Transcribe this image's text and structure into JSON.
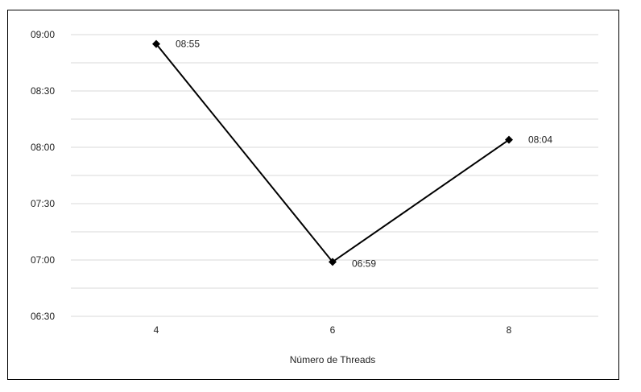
{
  "chart_data": {
    "type": "line",
    "title": "",
    "xlabel": "Número de Threads",
    "ylabel": "",
    "categories": [
      "4",
      "6",
      "8"
    ],
    "series": [
      {
        "values_minutes": [
          535,
          419,
          484
        ],
        "labels": [
          "08:55",
          "06:59",
          "08:04"
        ],
        "color": "#000000",
        "marker": "diamond"
      }
    ],
    "y_ticks": [
      "06:30",
      "07:00",
      "07:30",
      "08:00",
      "08:30",
      "09:00"
    ],
    "ylim_minutes": [
      390,
      540
    ],
    "grid": true,
    "grid_color": "#d9d9d9",
    "legend": "none"
  }
}
